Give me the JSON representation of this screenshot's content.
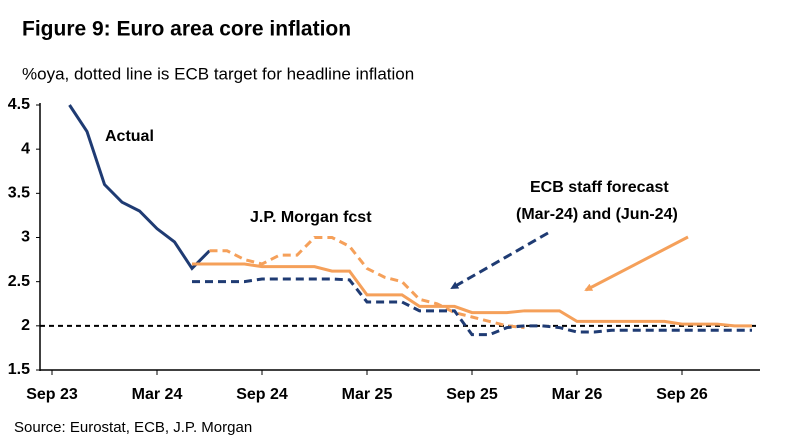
{
  "chart_data": {
    "type": "line",
    "title": "Figure 9: Euro area core inflation",
    "subtitle": "%oya, dotted line is ECB target for headline inflation",
    "source": "Source: Eurostat, ECB, J.P. Morgan",
    "annotations": [
      "Actual",
      "J.P. Morgan fcst",
      "ECB staff forecast",
      "(Mar-24) and (Jun-24)"
    ],
    "categories": [
      "Sep 23",
      null,
      null,
      null,
      null,
      null,
      "Mar 24",
      null,
      null,
      null,
      null,
      null,
      "Sep 24",
      null,
      null,
      null,
      null,
      null,
      "Mar 25",
      null,
      null,
      null,
      null,
      null,
      "Sep 25",
      null,
      null,
      null,
      null,
      null,
      "Mar 26",
      null,
      null,
      null,
      null,
      null,
      "Sep 26",
      null,
      null,
      null,
      null
    ],
    "series": [
      {
        "name": "Actual",
        "color": "#1f3b73",
        "dash": "solid",
        "values": [
          null,
          4.5,
          4.2,
          3.6,
          3.4,
          3.3,
          3.1,
          2.95,
          2.65,
          2.85,
          null,
          null,
          null,
          null,
          null,
          null,
          null,
          null,
          null,
          null,
          null,
          null,
          null,
          null,
          null,
          null,
          null,
          null,
          null,
          null,
          null,
          null,
          null,
          null,
          null,
          null,
          null,
          null,
          null,
          null,
          null
        ]
      },
      {
        "name": "J.P. Morgan fcst",
        "color": "#f5a05a",
        "dash": "dashed",
        "values": [
          null,
          null,
          null,
          null,
          null,
          null,
          null,
          null,
          null,
          2.85,
          2.85,
          2.75,
          2.7,
          2.8,
          2.8,
          3.0,
          3.0,
          2.9,
          2.65,
          2.55,
          2.5,
          2.3,
          2.25,
          2.15,
          2.1,
          2.05,
          2.0,
          1.98,
          null,
          null,
          null,
          null,
          null,
          null,
          null,
          null,
          null,
          null,
          null,
          null,
          null
        ]
      },
      {
        "name": "ECB staff forecast (Mar-24)",
        "color": "#f5a05a",
        "dash": "solid",
        "values": [
          null,
          null,
          null,
          null,
          null,
          null,
          null,
          null,
          2.7,
          2.7,
          2.7,
          2.7,
          2.67,
          2.67,
          2.67,
          2.67,
          2.62,
          2.62,
          2.35,
          2.35,
          2.35,
          2.22,
          2.22,
          2.22,
          2.15,
          2.15,
          2.15,
          2.17,
          2.17,
          2.17,
          2.05,
          2.05,
          2.05,
          2.05,
          2.05,
          2.05,
          2.02,
          2.02,
          2.02,
          2.0,
          2.0
        ]
      },
      {
        "name": "ECB staff forecast (Jun-24)",
        "color": "#1f3b73",
        "dash": "dashed",
        "values": [
          null,
          null,
          null,
          null,
          null,
          null,
          null,
          null,
          2.5,
          2.5,
          2.5,
          2.5,
          2.53,
          2.53,
          2.53,
          2.53,
          2.53,
          2.52,
          2.27,
          2.27,
          2.27,
          2.17,
          2.17,
          2.17,
          1.9,
          1.9,
          1.98,
          2.0,
          2.0,
          1.98,
          1.93,
          1.93,
          1.95,
          1.95,
          1.95,
          1.95,
          1.95,
          1.95,
          1.95,
          1.95,
          1.95
        ]
      }
    ],
    "target": 2.0,
    "ylim": [
      1.5,
      4.5
    ],
    "yticks": [
      1.5,
      2.0,
      2.5,
      3.0,
      3.5,
      4.0,
      4.5
    ],
    "grid": false
  }
}
